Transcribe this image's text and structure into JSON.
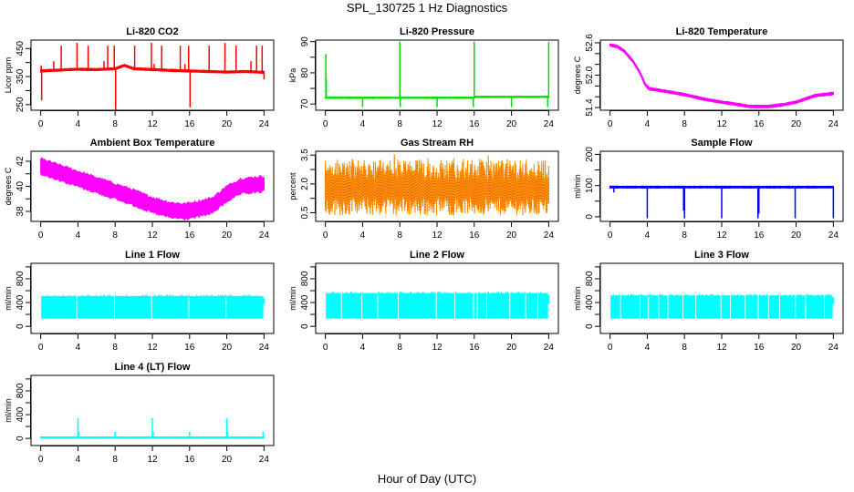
{
  "figure": {
    "title": "SPL_130725  1 Hz Diagnostics",
    "x_axis_label": "Hour of Day (UTC)"
  },
  "chart_data": [
    {
      "id": "co2",
      "type": "line",
      "title": "Li-820 CO2",
      "ylabel": "Licor ppm",
      "color": "#ff0000",
      "xlim": [
        0,
        24
      ],
      "ylim": [
        230,
        480
      ],
      "xticks": [
        0,
        4,
        8,
        12,
        16,
        20,
        24
      ],
      "yticks": [
        250,
        300,
        350,
        400,
        450
      ],
      "ytick_labels": [
        "250",
        "",
        "350",
        "",
        "450"
      ],
      "baseline": [
        [
          0,
          370
        ],
        [
          1,
          372
        ],
        [
          2,
          373
        ],
        [
          3,
          375
        ],
        [
          4,
          376
        ],
        [
          6,
          375
        ],
        [
          8,
          378
        ],
        [
          9,
          390
        ],
        [
          10,
          378
        ],
        [
          12,
          375
        ],
        [
          14,
          372
        ],
        [
          16,
          370
        ],
        [
          18,
          368
        ],
        [
          20,
          366
        ],
        [
          22,
          368
        ],
        [
          24,
          365
        ]
      ],
      "band_halfwidth": 4,
      "spikes": [
        [
          0.1,
          265
        ],
        [
          0.05,
          390
        ],
        [
          1.4,
          405
        ],
        [
          2.2,
          460
        ],
        [
          3.9,
          470
        ],
        [
          5.1,
          460
        ],
        [
          6.8,
          405
        ],
        [
          7.2,
          460
        ],
        [
          7.9,
          460
        ],
        [
          8.05,
          230
        ],
        [
          10.1,
          460
        ],
        [
          11.9,
          470
        ],
        [
          12.2,
          395
        ],
        [
          13.0,
          460
        ],
        [
          15.0,
          460
        ],
        [
          15.5,
          395
        ],
        [
          15.9,
          460
        ],
        [
          16.05,
          240
        ],
        [
          18.1,
          460
        ],
        [
          19.8,
          470
        ],
        [
          21.0,
          460
        ],
        [
          22.6,
          405
        ],
        [
          23.2,
          460
        ],
        [
          23.8,
          460
        ],
        [
          24,
          340
        ]
      ]
    },
    {
      "id": "pressure",
      "type": "line",
      "title": "Li-820 Pressure",
      "ylabel": "kPa",
      "color": "#00dd00",
      "xlim": [
        0,
        24
      ],
      "ylim": [
        68,
        90.5
      ],
      "xticks": [
        0,
        4,
        8,
        12,
        16,
        20,
        24
      ],
      "yticks": [
        70,
        75,
        80,
        85,
        90
      ],
      "ytick_labels": [
        "70",
        "",
        "80",
        "",
        "90"
      ],
      "baseline": [
        [
          0,
          72
        ],
        [
          16,
          72
        ],
        [
          16.1,
          72.3
        ],
        [
          24,
          72.3
        ]
      ],
      "band_halfwidth": 0.2,
      "spikes": [
        [
          0.05,
          86
        ],
        [
          0.1,
          78
        ],
        [
          4,
          69
        ],
        [
          8,
          90
        ],
        [
          8.05,
          69
        ],
        [
          12,
          69
        ],
        [
          15.9,
          69
        ],
        [
          16,
          90
        ],
        [
          20,
          69
        ],
        [
          23.9,
          69
        ],
        [
          24,
          90
        ]
      ]
    },
    {
      "id": "licor-temp",
      "type": "line",
      "title": "Li-820 Temperature",
      "ylabel": "degrees C",
      "color": "#ff00ff",
      "xlim": [
        0,
        24
      ],
      "ylim": [
        51.35,
        52.65
      ],
      "xticks": [
        0,
        4,
        8,
        12,
        16,
        20,
        24
      ],
      "yticks": [
        51.4,
        51.6,
        51.8,
        52.0,
        52.2,
        52.4,
        52.6
      ],
      "ytick_labels": [
        "51.4",
        "",
        "",
        "52.0",
        "",
        "",
        "52.6"
      ],
      "baseline": [
        [
          0,
          52.56
        ],
        [
          0.8,
          52.53
        ],
        [
          1.5,
          52.45
        ],
        [
          2.5,
          52.25
        ],
        [
          3.2,
          52.05
        ],
        [
          3.8,
          51.82
        ],
        [
          4.2,
          51.75
        ],
        [
          6,
          51.7
        ],
        [
          8,
          51.64
        ],
        [
          10,
          51.56
        ],
        [
          12,
          51.5
        ],
        [
          14,
          51.45
        ],
        [
          15,
          51.42
        ],
        [
          17,
          51.42
        ],
        [
          18.5,
          51.45
        ],
        [
          20,
          51.5
        ],
        [
          22,
          51.62
        ],
        [
          23.9,
          51.66
        ]
      ],
      "band_halfwidth": 0.025,
      "spikes": []
    },
    {
      "id": "box-temp",
      "type": "line",
      "title": "Ambient Box Temperature",
      "ylabel": "degrees C",
      "color": "#ff00ff",
      "xlim": [
        0,
        24
      ],
      "ylim": [
        37.2,
        42.8
      ],
      "xticks": [
        0,
        4,
        8,
        12,
        16,
        20,
        24
      ],
      "yticks": [
        38,
        39,
        40,
        41,
        42
      ],
      "ytick_labels": [
        "38",
        "",
        "40",
        "",
        "42"
      ],
      "baseline": [
        [
          0,
          41.6
        ],
        [
          2,
          41.1
        ],
        [
          4,
          40.6
        ],
        [
          6,
          40.1
        ],
        [
          8,
          39.6
        ],
        [
          10,
          39.1
        ],
        [
          12,
          38.5
        ],
        [
          14,
          38.1
        ],
        [
          15.5,
          38.0
        ],
        [
          17,
          38.2
        ],
        [
          18.5,
          38.5
        ],
        [
          20,
          39.4
        ],
        [
          21.5,
          40.0
        ],
        [
          24,
          40.2
        ]
      ],
      "band_halfwidth": 0.7,
      "spikes": []
    },
    {
      "id": "gas-rh",
      "type": "line",
      "title": "Gas Stream RH",
      "ylabel": "percent",
      "color": "#ff9900",
      "accent_color": "#dd2222",
      "xlim": [
        0,
        24
      ],
      "ylim": [
        0.05,
        3.7
      ],
      "xticks": [
        0,
        4,
        8,
        12,
        16,
        20,
        24
      ],
      "yticks": [
        0.5,
        1.25,
        2.0,
        2.75,
        3.5
      ],
      "ytick_labels": [
        "0.5",
        "",
        "2.0",
        "",
        "3.5"
      ],
      "baseline": [
        [
          0,
          1.9
        ],
        [
          24,
          1.9
        ]
      ],
      "band_halfwidth": 1.0,
      "noise_range": [
        0.3,
        3.55
      ],
      "spikes": []
    },
    {
      "id": "sample-flow",
      "type": "line",
      "title": "Sample Flow",
      "ylabel": "ml/min",
      "color": "#0000ee",
      "xlim": [
        0,
        24
      ],
      "ylim": [
        -15,
        210
      ],
      "xticks": [
        0,
        4,
        8,
        12,
        16,
        20,
        24
      ],
      "yticks": [
        0,
        50,
        100,
        150,
        200
      ],
      "ytick_labels": [
        "0",
        "",
        "100",
        "",
        "200"
      ],
      "baseline": [
        [
          0,
          95
        ],
        [
          24,
          95
        ]
      ],
      "band_halfwidth": 3,
      "spikes": [
        [
          0.4,
          78
        ],
        [
          4,
          -5
        ],
        [
          7.9,
          20
        ],
        [
          8,
          -5
        ],
        [
          12,
          -5
        ],
        [
          15.9,
          -5
        ],
        [
          16,
          10
        ],
        [
          19.9,
          -5
        ],
        [
          24,
          -5
        ]
      ]
    },
    {
      "id": "line1-flow",
      "type": "area",
      "title": "Line 1 Flow",
      "ylabel": "ml/min",
      "color": "#00ffff",
      "xlim": [
        0,
        24
      ],
      "ylim": [
        -120,
        1060
      ],
      "xticks": [
        0,
        4,
        8,
        12,
        16,
        20,
        24
      ],
      "yticks": [
        0,
        200,
        400,
        600,
        800,
        1000
      ],
      "ytick_labels": [
        "0",
        "",
        "400",
        "",
        "800",
        ""
      ],
      "band_low": 130,
      "band_high": 510,
      "gaps": [
        3.85,
        7.9,
        11.9,
        15.9,
        19.9
      ],
      "end_value": 380
    },
    {
      "id": "line2-flow",
      "type": "area",
      "title": "Line 2 Flow",
      "ylabel": "ml/min",
      "color": "#00ffff",
      "xlim": [
        0,
        24
      ],
      "ylim": [
        -120,
        1060
      ],
      "xticks": [
        0,
        4,
        8,
        12,
        16,
        20,
        24
      ],
      "yticks": [
        0,
        200,
        400,
        600,
        800,
        1000
      ],
      "ytick_labels": [
        "0",
        "",
        "400",
        "",
        "800",
        ""
      ],
      "band_low": 130,
      "band_high": 560,
      "gaps": [
        1.7,
        3.9,
        5.6,
        7.8,
        11.9,
        13.9,
        15.9,
        16.3,
        17.3,
        19.8,
        21.5,
        22.8
      ],
      "end_value": 380
    },
    {
      "id": "line3-flow",
      "type": "area",
      "title": "Line 3 Flow",
      "ylabel": "ml/min",
      "color": "#00ffff",
      "xlim": [
        0,
        24
      ],
      "ylim": [
        -120,
        1060
      ],
      "xticks": [
        0,
        4,
        8,
        12,
        16,
        20,
        24
      ],
      "yticks": [
        0,
        200,
        400,
        600,
        800,
        1000
      ],
      "ytick_labels": [
        "0",
        "",
        "400",
        "",
        "800",
        ""
      ],
      "band_low": 130,
      "band_high": 520,
      "gaps": [
        1.1,
        3.2,
        4.1,
        5.2,
        6.2,
        7.8,
        9.2,
        11.9,
        12.9,
        14.5,
        15.9,
        17.0,
        18.2,
        19.9,
        21.0,
        23.0
      ],
      "end_value": 380
    },
    {
      "id": "line4-flow",
      "type": "line",
      "title": "Line 4 (LT) Flow",
      "ylabel": "ml/min",
      "color": "#00ffff",
      "xlim": [
        0,
        24
      ],
      "ylim": [
        -120,
        1060
      ],
      "xticks": [
        0,
        4,
        8,
        12,
        16,
        20,
        24
      ],
      "yticks": [
        0,
        200,
        400,
        600,
        800,
        1000
      ],
      "ytick_labels": [
        "0",
        "",
        "400",
        "",
        "800",
        ""
      ],
      "baseline": [
        [
          0,
          15
        ],
        [
          24,
          15
        ]
      ],
      "band_halfwidth": 10,
      "spikes": [
        [
          4,
          340
        ],
        [
          4.1,
          110
        ],
        [
          8,
          110
        ],
        [
          12,
          340
        ],
        [
          12.1,
          110
        ],
        [
          16,
          110
        ],
        [
          20,
          340
        ],
        [
          20.1,
          110
        ],
        [
          23.9,
          110
        ]
      ]
    }
  ]
}
